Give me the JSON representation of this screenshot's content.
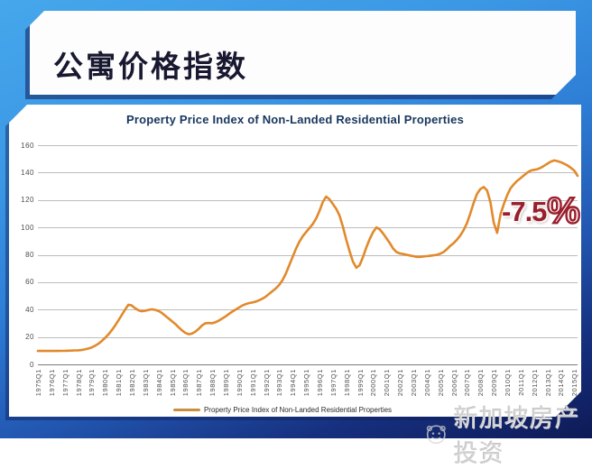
{
  "header": {
    "title": "公寓价格指数"
  },
  "annotation": {
    "value": "-7.5",
    "unit": "%"
  },
  "watermark": {
    "logo": "panda-face-logo",
    "text": "新加坡房产投资"
  },
  "colors": {
    "background_top": "#46A7EC",
    "background_bottom": "#0E1A57",
    "panel": "#FFFFFF",
    "line": "#E2892B",
    "legend_swatch": "#C98F3E",
    "annotation_red": "#9A1E2B",
    "title_navy": "#17365D",
    "axis_text": "#4D4D4D"
  },
  "chart_data": {
    "type": "line",
    "title": "Property Price Index of Non-Landed Residential Properties",
    "xlabel": "",
    "ylabel": "",
    "ylim": [
      0,
      160
    ],
    "y_ticks": [
      160,
      140,
      120,
      100,
      80,
      60,
      40,
      20,
      0
    ],
    "grid": true,
    "legend_position": "bottom",
    "line_color": "#E2892B",
    "x_start": "1975Q1",
    "x_end": "2015Q2",
    "x_tick_labels": [
      "1975Q1",
      "1976Q1",
      "1977Q1",
      "1978Q1",
      "1979Q1",
      "1980Q1",
      "1981Q1",
      "1982Q1",
      "1983Q1",
      "1984Q1",
      "1985Q1",
      "1986Q1",
      "1987Q1",
      "1988Q1",
      "1989Q1",
      "1990Q1",
      "1991Q1",
      "1992Q1",
      "1993Q1",
      "1994Q1",
      "1995Q1",
      "1996Q1",
      "1997Q1",
      "1998Q1",
      "1999Q1",
      "2000Q1",
      "2001Q1",
      "2002Q1",
      "2003Q1",
      "2004Q1",
      "2005Q1",
      "2006Q1",
      "2007Q1",
      "2008Q1",
      "2009Q1",
      "2010Q1",
      "2011Q1",
      "2012Q1",
      "2013Q1",
      "2014Q1",
      "2015Q1"
    ],
    "annotations": [
      "-7.5%"
    ],
    "series": [
      {
        "name": "Property Price Index of Non-Landed Residential Properties",
        "frequency": "quarterly",
        "start": "1975Q1",
        "values": [
          9.8,
          9.8,
          9.8,
          9.8,
          9.8,
          9.8,
          9.8,
          9.9,
          9.9,
          10,
          10.1,
          10.2,
          10.3,
          10.5,
          10.9,
          11.5,
          12.3,
          13.5,
          15,
          17,
          19.2,
          21.8,
          24.8,
          28.2,
          32,
          36,
          40,
          43.5,
          43,
          41,
          39.5,
          38.8,
          39.2,
          39.8,
          40.2,
          39.8,
          39,
          37.5,
          35.5,
          33.5,
          31.5,
          29.5,
          27,
          24.8,
          23,
          22,
          22.5,
          24,
          26,
          28.5,
          30,
          30.2,
          30,
          30.8,
          32,
          33.5,
          35,
          36.8,
          38.5,
          40,
          41.5,
          43,
          44,
          44.8,
          45.2,
          45.8,
          46.8,
          48,
          49.5,
          51.5,
          53.5,
          55.5,
          58,
          61.5,
          66.5,
          72.5,
          78.5,
          84.5,
          89.5,
          93.5,
          96.5,
          99.5,
          102.5,
          106.5,
          112,
          118.5,
          122.5,
          120.5,
          117,
          113.5,
          108.5,
          100.5,
          91,
          82.5,
          75,
          70.5,
          72.5,
          78.5,
          85.5,
          91.5,
          96.5,
          100,
          98.5,
          95.5,
          92,
          88.5,
          84.5,
          82,
          81,
          80.5,
          80,
          79.5,
          79,
          78.5,
          78.5,
          78.8,
          79,
          79.3,
          79.6,
          80,
          80.8,
          82,
          84,
          86.5,
          88.5,
          91,
          94,
          98,
          103,
          110,
          118,
          124.5,
          128,
          129.5,
          127,
          118.5,
          103.5,
          96,
          109.5,
          117,
          123.5,
          128.5,
          131.5,
          134,
          136,
          138,
          140,
          141.5,
          142,
          142.5,
          143.5,
          145,
          146.5,
          148,
          148.9,
          148.4,
          147.6,
          146.5,
          145.2,
          143.5,
          141.5,
          137.7
        ]
      }
    ]
  }
}
